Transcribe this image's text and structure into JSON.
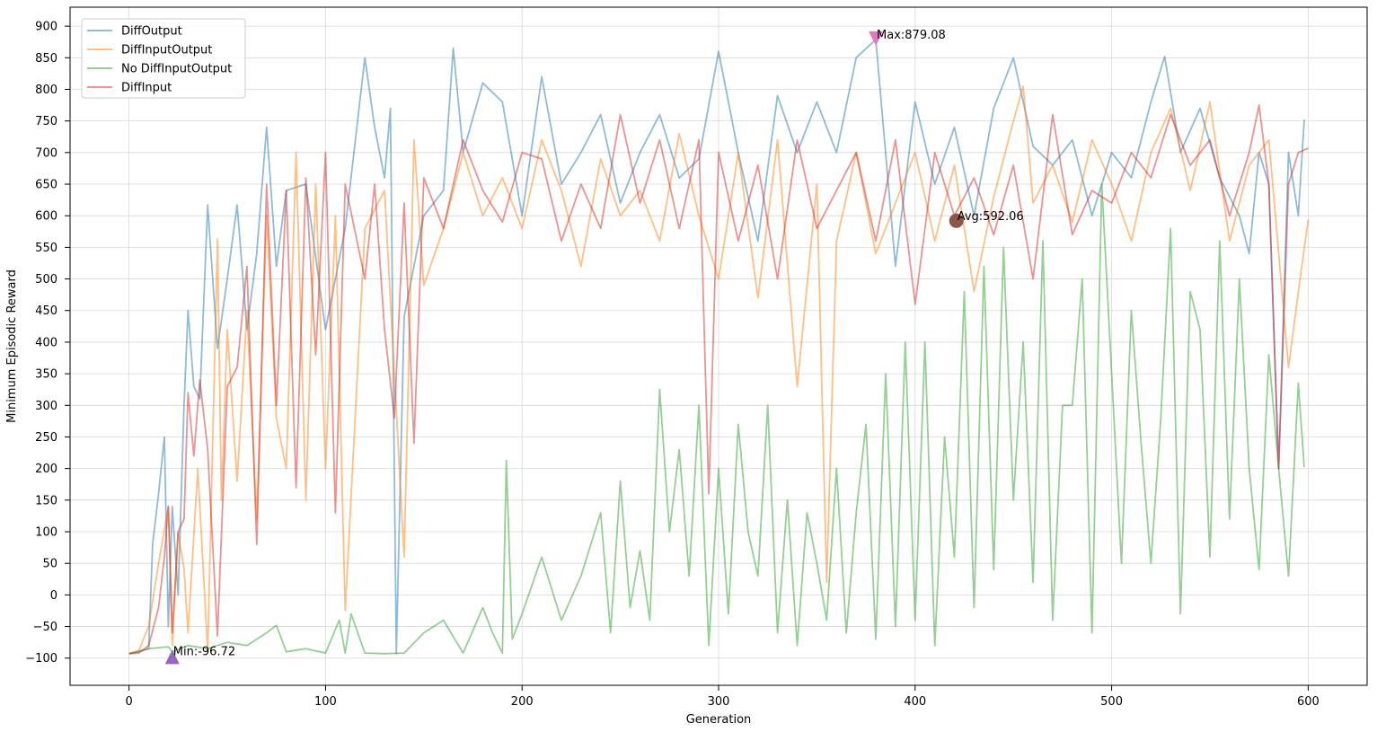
{
  "chart_data": {
    "type": "line",
    "title": "",
    "xlabel": "Generation",
    "ylabel": "Minimum Episodic Reward",
    "xlim": [
      -30,
      630
    ],
    "ylim": [
      -143,
      930
    ],
    "xticks": [
      0,
      100,
      200,
      300,
      400,
      500,
      600
    ],
    "yticks": [
      -100,
      -50,
      0,
      50,
      100,
      150,
      200,
      250,
      300,
      350,
      400,
      450,
      500,
      550,
      600,
      650,
      700,
      750,
      800,
      850,
      900
    ],
    "grid": true,
    "legend_position": "top-left",
    "series": [
      {
        "name": "DiffOutput",
        "color": "#1f77b4",
        "alpha": 0.5,
        "x": [
          0,
          5,
          10,
          12,
          15,
          18,
          20,
          22,
          25,
          28,
          30,
          33,
          36,
          40,
          45,
          50,
          55,
          60,
          65,
          70,
          75,
          80,
          90,
          100,
          110,
          120,
          125,
          130,
          133,
          136,
          140,
          150,
          160,
          165,
          170,
          180,
          190,
          200,
          210,
          220,
          230,
          240,
          250,
          260,
          270,
          280,
          290,
          300,
          310,
          320,
          330,
          340,
          350,
          360,
          370,
          380,
          390,
          400,
          410,
          420,
          430,
          440,
          450,
          460,
          470,
          480,
          490,
          500,
          510,
          520,
          527,
          535,
          545,
          555,
          565,
          570,
          575,
          580,
          585,
          590,
          595,
          598
        ],
        "y": [
          -93,
          -90,
          -85,
          80,
          160,
          250,
          -50,
          140,
          0,
          300,
          450,
          330,
          310,
          617,
          390,
          500,
          617,
          420,
          540,
          740,
          520,
          640,
          650,
          420,
          580,
          850,
          740,
          660,
          770,
          -93,
          440,
          600,
          640,
          865,
          700,
          810,
          780,
          600,
          820,
          650,
          700,
          760,
          620,
          700,
          760,
          660,
          690,
          860,
          700,
          560,
          790,
          700,
          780,
          700,
          850,
          879,
          520,
          780,
          650,
          740,
          600,
          770,
          850,
          710,
          680,
          720,
          600,
          700,
          660,
          780,
          852,
          700,
          770,
          660,
          600,
          540,
          700,
          650,
          200,
          700,
          600,
          752
        ]
      },
      {
        "name": "DiffInputOutput",
        "color": "#ff7f0e",
        "alpha": 0.5,
        "x": [
          0,
          5,
          10,
          15,
          20,
          22,
          25,
          28,
          30,
          35,
          40,
          45,
          47,
          50,
          55,
          60,
          65,
          70,
          75,
          80,
          85,
          90,
          95,
          100,
          105,
          110,
          120,
          130,
          140,
          145,
          150,
          160,
          170,
          180,
          190,
          200,
          210,
          220,
          230,
          240,
          250,
          260,
          270,
          280,
          290,
          300,
          310,
          320,
          330,
          340,
          350,
          355,
          360,
          370,
          380,
          390,
          400,
          410,
          420,
          430,
          440,
          450,
          455,
          460,
          470,
          480,
          490,
          500,
          510,
          520,
          530,
          540,
          550,
          560,
          570,
          580,
          590,
          595,
          600
        ],
        "y": [
          -93,
          -88,
          -50,
          50,
          140,
          -80,
          100,
          40,
          -60,
          200,
          -90,
          563,
          150,
          420,
          180,
          450,
          120,
          600,
          280,
          200,
          700,
          150,
          650,
          200,
          600,
          -25,
          580,
          640,
          60,
          720,
          490,
          580,
          700,
          600,
          660,
          580,
          720,
          640,
          520,
          690,
          600,
          640,
          560,
          730,
          600,
          500,
          700,
          470,
          720,
          330,
          650,
          20,
          560,
          700,
          540,
          620,
          700,
          560,
          680,
          480,
          630,
          750,
          805,
          620,
          680,
          590,
          720,
          650,
          560,
          700,
          770,
          640,
          780,
          560,
          680,
          720,
          360,
          480,
          594
        ]
      },
      {
        "name": "No DiffInputOutput",
        "color": "#2ca02c",
        "alpha": 0.5,
        "x": [
          0,
          10,
          20,
          22,
          30,
          40,
          50,
          60,
          70,
          75,
          80,
          90,
          100,
          107,
          110,
          113,
          120,
          130,
          140,
          150,
          160,
          170,
          180,
          185,
          190,
          192,
          195,
          200,
          210,
          220,
          230,
          240,
          245,
          250,
          255,
          260,
          265,
          270,
          275,
          280,
          285,
          290,
          295,
          300,
          305,
          310,
          315,
          320,
          325,
          330,
          335,
          340,
          345,
          350,
          355,
          360,
          365,
          370,
          375,
          380,
          385,
          390,
          395,
          400,
          405,
          410,
          415,
          420,
          425,
          430,
          435,
          440,
          445,
          450,
          455,
          460,
          465,
          470,
          475,
          480,
          485,
          490,
          495,
          500,
          505,
          510,
          515,
          520,
          525,
          530,
          535,
          540,
          545,
          550,
          555,
          560,
          565,
          570,
          575,
          580,
          585,
          590,
          595,
          598
        ],
        "y": [
          -93,
          -85,
          -82,
          -90,
          -80,
          -85,
          -75,
          -80,
          -60,
          -48,
          -90,
          -85,
          -92,
          -40,
          -92,
          -30,
          -92,
          -93,
          -92,
          -60,
          -40,
          -92,
          -20,
          -60,
          -92,
          213,
          -70,
          -30,
          60,
          -40,
          30,
          130,
          -60,
          180,
          -20,
          70,
          -40,
          325,
          100,
          230,
          30,
          300,
          -80,
          200,
          -30,
          270,
          100,
          30,
          300,
          -60,
          150,
          -80,
          130,
          50,
          -40,
          200,
          -60,
          130,
          270,
          -70,
          350,
          -50,
          400,
          -40,
          400,
          -80,
          250,
          60,
          480,
          -20,
          520,
          40,
          550,
          150,
          400,
          20,
          560,
          -40,
          300,
          300,
          500,
          -60,
          650,
          350,
          50,
          450,
          240,
          50,
          280,
          580,
          -30,
          480,
          420,
          60,
          560,
          120,
          500,
          200,
          40,
          380,
          200,
          30,
          335,
          202
        ]
      },
      {
        "name": "DiffInput",
        "color": "#d62728",
        "alpha": 0.5,
        "x": [
          0,
          5,
          10,
          15,
          18,
          20,
          22,
          25,
          28,
          30,
          33,
          36,
          40,
          45,
          50,
          55,
          60,
          65,
          70,
          75,
          80,
          85,
          90,
          95,
          100,
          105,
          110,
          120,
          125,
          130,
          135,
          140,
          145,
          150,
          160,
          170,
          180,
          190,
          200,
          210,
          220,
          230,
          240,
          250,
          260,
          270,
          280,
          290,
          295,
          300,
          310,
          320,
          330,
          340,
          350,
          360,
          370,
          380,
          390,
          400,
          410,
          420,
          430,
          440,
          450,
          460,
          470,
          480,
          490,
          500,
          510,
          520,
          530,
          540,
          550,
          560,
          570,
          575,
          580,
          585,
          590,
          595,
          600
        ],
        "y": [
          -93,
          -92,
          -80,
          -20,
          60,
          140,
          -60,
          100,
          120,
          320,
          220,
          340,
          230,
          -65,
          330,
          360,
          520,
          80,
          650,
          300,
          640,
          170,
          660,
          380,
          700,
          130,
          650,
          500,
          650,
          420,
          280,
          620,
          240,
          660,
          580,
          720,
          640,
          590,
          700,
          690,
          560,
          650,
          580,
          760,
          620,
          720,
          580,
          720,
          160,
          700,
          560,
          680,
          500,
          720,
          580,
          640,
          700,
          560,
          720,
          460,
          700,
          600,
          660,
          570,
          680,
          500,
          760,
          570,
          640,
          620,
          700,
          660,
          760,
          680,
          720,
          600,
          700,
          775,
          650,
          200,
          650,
          700,
          707
        ]
      }
    ],
    "annotations": [
      {
        "text": "Max:879.08",
        "x": 380,
        "y": 879.08,
        "marker": "down-triangle",
        "color": "#e377c2"
      },
      {
        "text": "Avg:592.06",
        "x": 421,
        "y": 592.06,
        "marker": "circle",
        "color": "#8c564b"
      },
      {
        "text": "Min:-96.72",
        "x": 22,
        "y": -96.72,
        "marker": "up-triangle",
        "color": "#9467bd"
      }
    ]
  }
}
